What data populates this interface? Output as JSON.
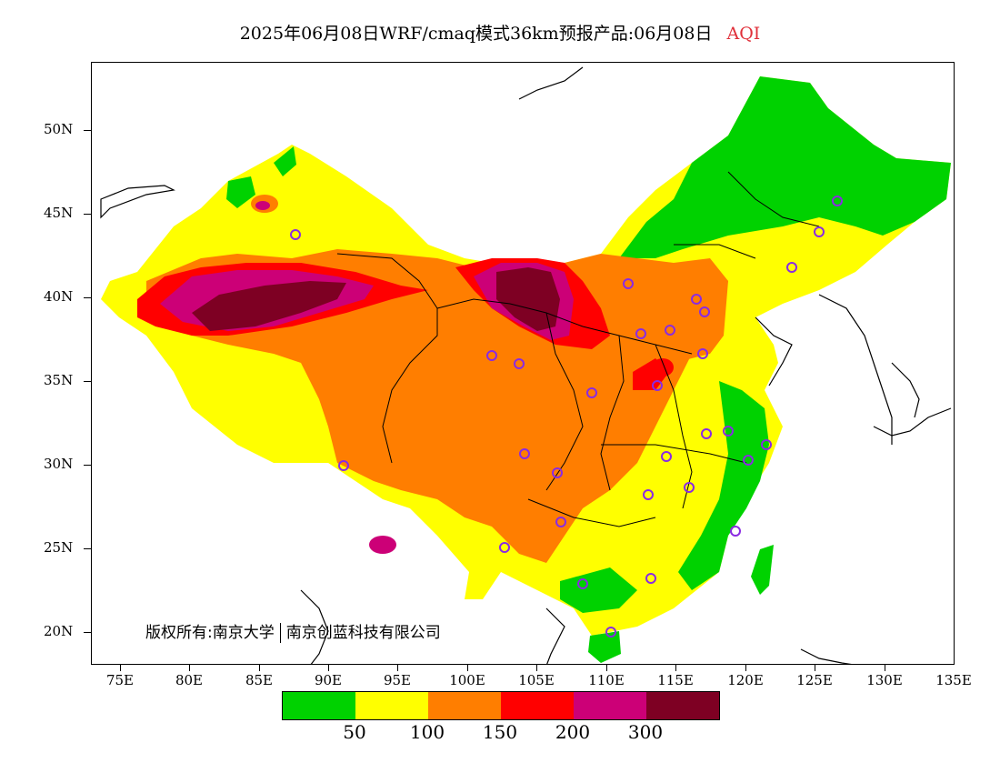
{
  "title": {
    "main": "2025年06月08日WRF/cmaq模式36km预报产品:06月08日",
    "variable": "AQI"
  },
  "y_axis": {
    "labels": [
      "50N",
      "45N",
      "40N",
      "35N",
      "30N",
      "25N",
      "20N"
    ]
  },
  "x_axis": {
    "labels": [
      "75E",
      "80E",
      "85E",
      "90E",
      "95E",
      "100E",
      "105E",
      "110E",
      "115E",
      "120E",
      "125E",
      "130E",
      "135E"
    ]
  },
  "copyright": {
    "owner": "版权所有:南京大学",
    "partner": "南京创蓝科技有限公司"
  },
  "colorbar": {
    "colors": [
      "#00d200",
      "#ffff00",
      "#ff7e00",
      "#ff0000",
      "#cc0077",
      "#7e0023"
    ],
    "labels": [
      "50",
      "100",
      "150",
      "200",
      "300"
    ]
  }
}
